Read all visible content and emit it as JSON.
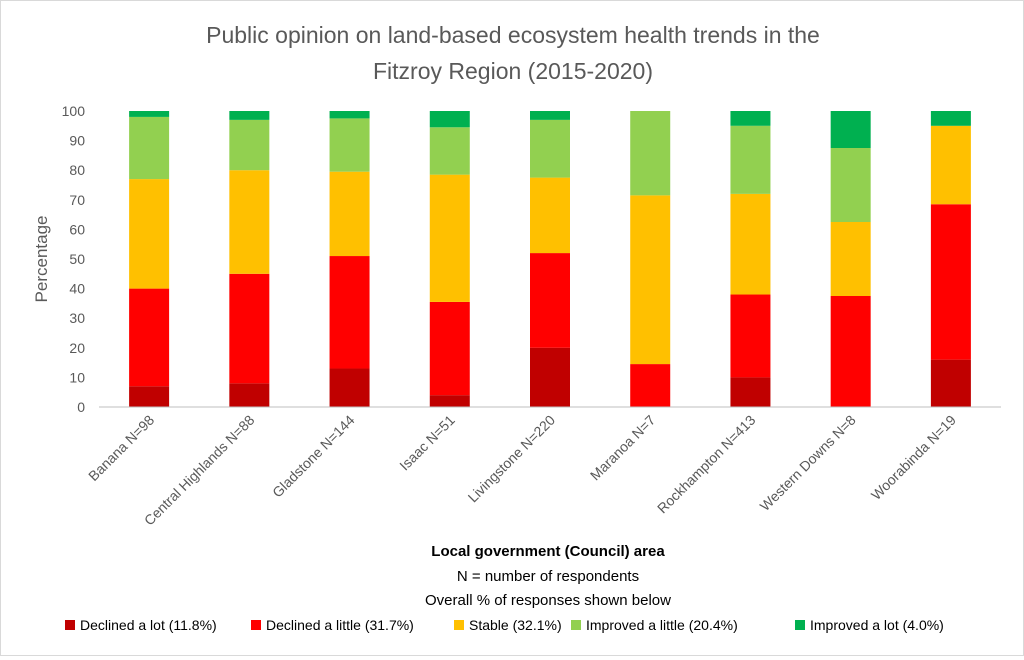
{
  "chart_data": {
    "type": "bar",
    "stacked": true,
    "title": "Public opinion on land-based ecosystem health trends in the Fitzroy Region (2015-2020)",
    "title_lines": [
      "Public opinion on land-based ecosystem health trends in the",
      "Fitzroy Region (2015-2020)"
    ],
    "xlabel": "Local government (Council) area",
    "ylabel": "Percentage",
    "notes": [
      "N = number of respondents",
      "Overall % of responses shown below"
    ],
    "ylim": [
      0,
      100
    ],
    "yticks": [
      0,
      10,
      20,
      30,
      40,
      50,
      60,
      70,
      80,
      90,
      100
    ],
    "grid": false,
    "legend_position": "bottom",
    "categories": [
      "Banana N=98",
      "Central Highlands N=88",
      "Gladstone N=144",
      "Isaac N=51",
      "Livingstone N=220",
      "Maranoa N=7",
      "Rockhampton N=413",
      "Western Downs N=8",
      "Woorabinda N=19"
    ],
    "series": [
      {
        "name": "Declined a lot (11.8%)",
        "color": "#c00000",
        "values": [
          7,
          8,
          13,
          4,
          20,
          0,
          10,
          0,
          16
        ]
      },
      {
        "name": "Declined a little (31.7%)",
        "color": "#ff0000",
        "values": [
          33,
          37,
          38,
          31.5,
          32,
          14.5,
          28,
          37.5,
          52.5
        ]
      },
      {
        "name": "Stable (32.1%)",
        "color": "#ffc000",
        "values": [
          37,
          35,
          28.5,
          43,
          25.5,
          57,
          34,
          25,
          26.5
        ]
      },
      {
        "name": "Improved a little (20.4%)",
        "color": "#92d050",
        "values": [
          21,
          17,
          18,
          16,
          19.5,
          28.5,
          23,
          25,
          0
        ]
      },
      {
        "name": "Improved a lot (4.0%)",
        "color": "#00b050",
        "values": [
          2,
          3,
          2.5,
          5.5,
          3,
          0,
          5,
          12.5,
          5
        ]
      }
    ]
  }
}
